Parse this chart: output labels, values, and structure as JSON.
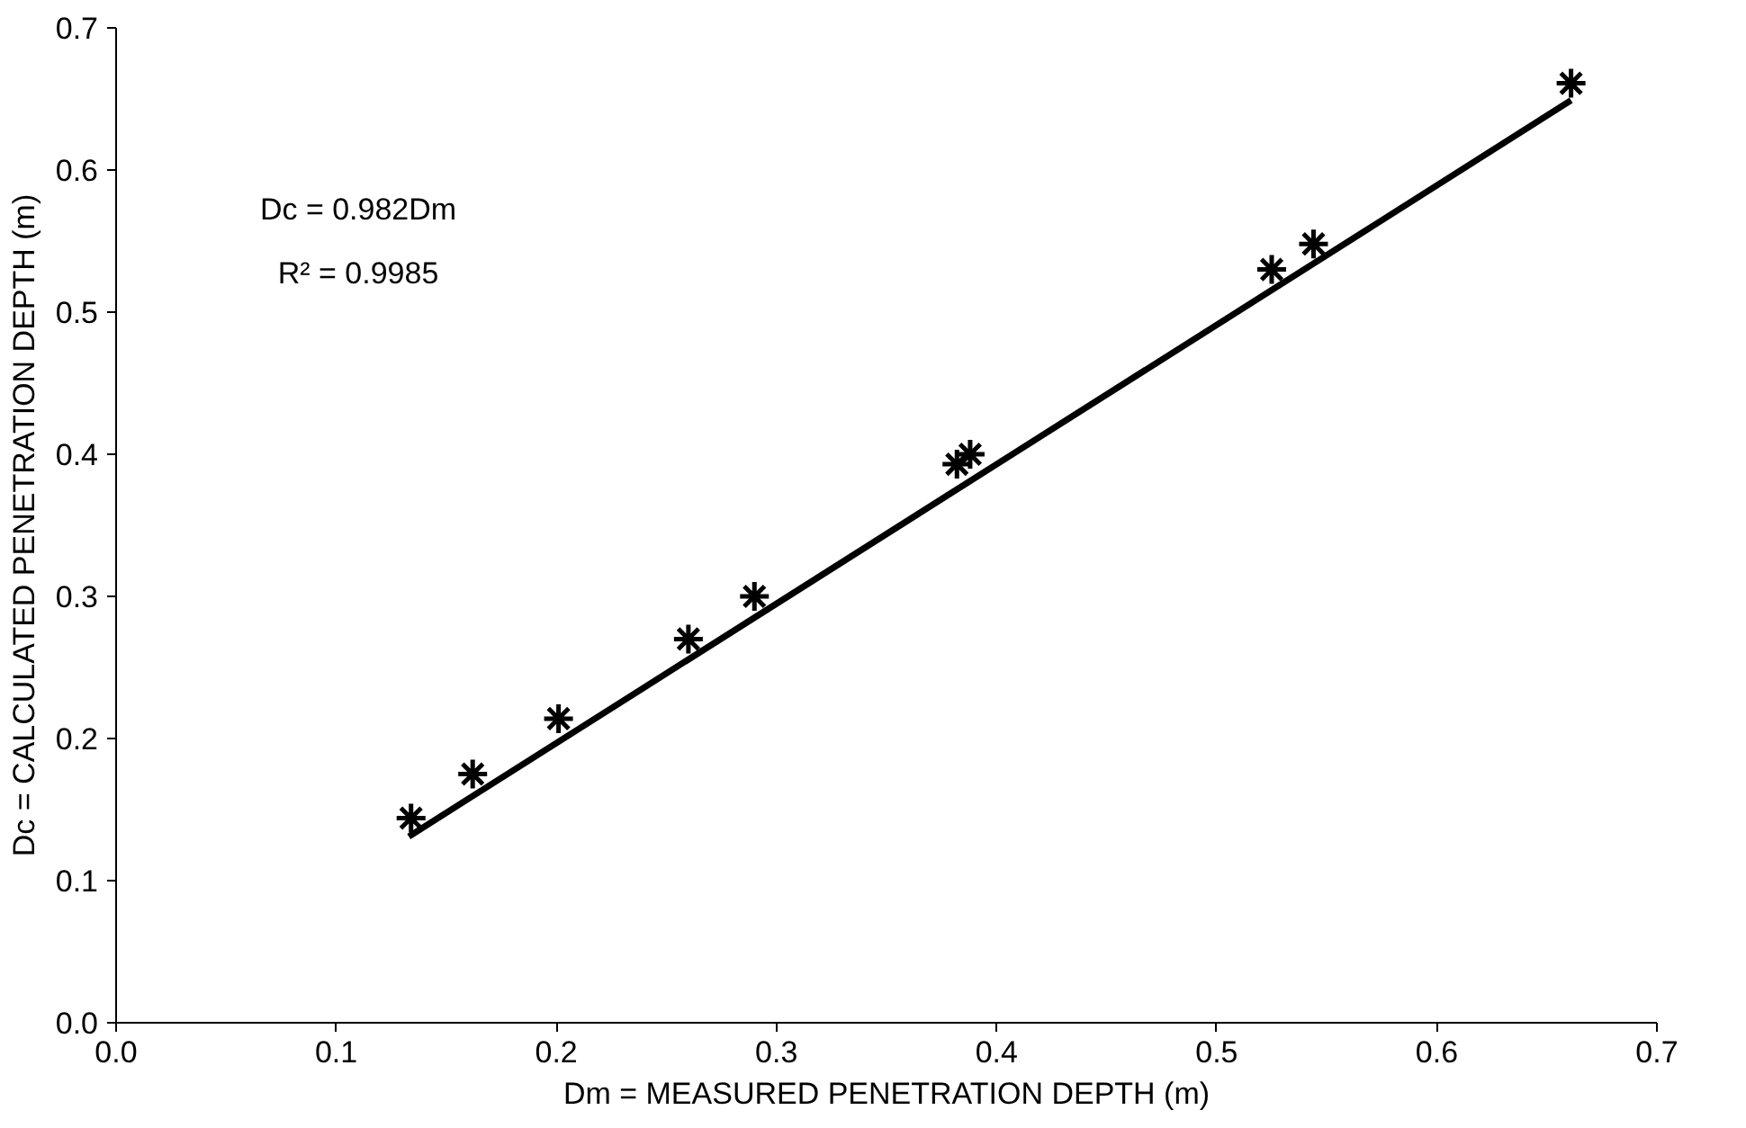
{
  "chart_data": {
    "type": "scatter",
    "xlabel": "Dm = MEASURED PENETRATION DEPTH (m)",
    "ylabel": "Dc = CALCULATED PENETRATION DEPTH (m)",
    "annotations": [
      "Dc = 0.982Dm",
      "R² = 0.9985"
    ],
    "xlim": [
      0,
      0.7
    ],
    "ylim": [
      0,
      0.7
    ],
    "xticks": [
      {
        "value": 0,
        "label": "0.0"
      },
      0.1,
      0.2,
      0.3,
      0.4,
      0.5,
      0.6,
      0.7
    ],
    "yticks": [
      {
        "value": 0,
        "label": "0.0"
      },
      0.1,
      0.2,
      0.3,
      0.4,
      0.5,
      0.6,
      0.7
    ],
    "grid": false,
    "marker": "cross",
    "series": [
      {
        "color": "#000000",
        "x": [
          0.134,
          0.162,
          0.201,
          0.26,
          0.29,
          0.382,
          0.388,
          0.525,
          0.544,
          0.661
        ],
        "values": [
          0.144,
          0.175,
          0.214,
          0.27,
          0.3,
          0.393,
          0.4,
          0.53,
          0.548,
          0.661
        ]
      },
      {
        "type": "line",
        "color": "#000000",
        "marker": "none",
        "line_style": "solid",
        "x": [
          0.133,
          0.661
        ],
        "values": [
          0.131,
          0.649
        ]
      }
    ]
  }
}
